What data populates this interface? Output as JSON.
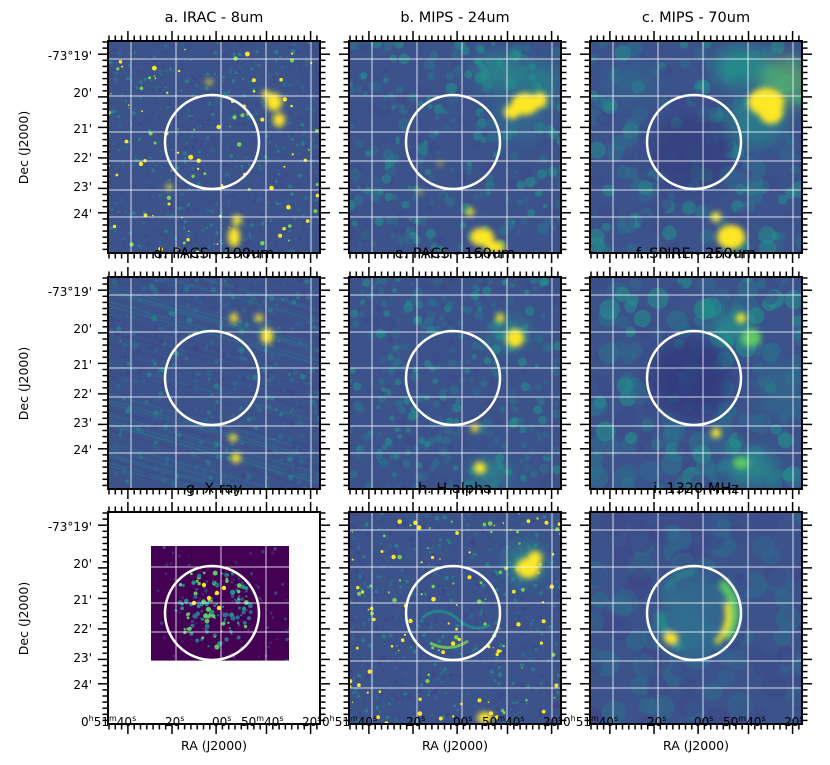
{
  "axes": {
    "ylabel": "Dec (J2000)",
    "xlabel": "RA (J2000)",
    "dec_ticks": [
      "-73°19'",
      "20'",
      "21'",
      "22'",
      "23'",
      "24'"
    ],
    "ra_ticks": [
      {
        "h": "0",
        "hu": "h",
        "m": "51",
        "mu": "m",
        "s": "40",
        "su": "s"
      },
      {
        "s": "20",
        "su": "s"
      },
      {
        "s": "00",
        "su": "s"
      },
      {
        "m": "50",
        "mu": "m",
        "s": "40",
        "su": "s"
      },
      {
        "s": "20",
        "su": "s"
      }
    ]
  },
  "colors": {
    "bg": "#3b528b",
    "dark": "#31357a",
    "mid": "#21918c",
    "bright": "#fde725",
    "xray_bg": "#440154",
    "grid": "#ffffff"
  },
  "panels": [
    {
      "id": "a",
      "title": "a. IRAC - 8um"
    },
    {
      "id": "b",
      "title": "b. MIPS - 24um"
    },
    {
      "id": "c",
      "title": "c. MIPS - 70um"
    },
    {
      "id": "d",
      "title": "d. PACS - 100um"
    },
    {
      "id": "e",
      "title": "e. PACS - 160um"
    },
    {
      "id": "f",
      "title": "f. SPIRE - 250um"
    },
    {
      "id": "g",
      "title": "g. X-ray"
    },
    {
      "id": "h",
      "title": "h. H alpha"
    },
    {
      "id": "i",
      "title": "i. 1320 MHz"
    }
  ]
}
